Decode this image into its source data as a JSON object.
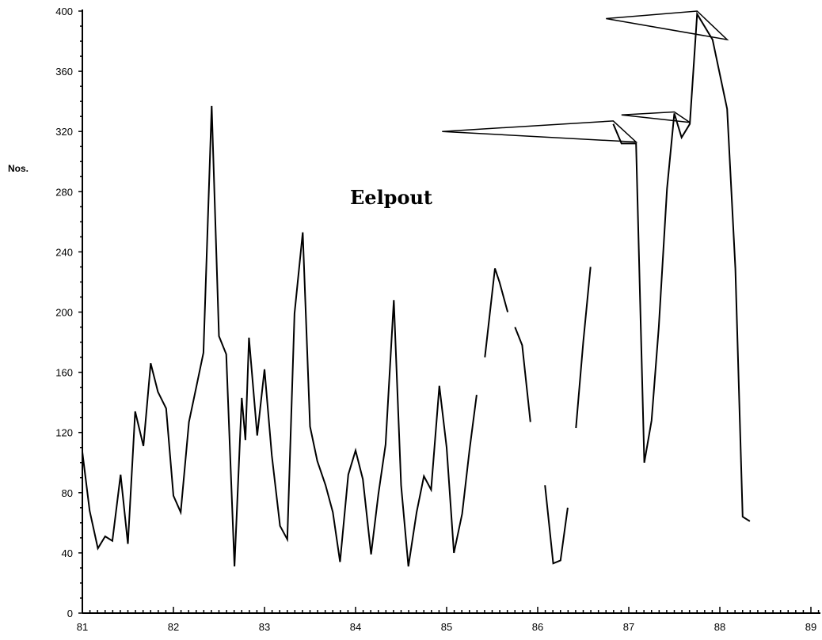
{
  "chart_data": {
    "type": "line",
    "title": "Eelpout",
    "ylabel": "Nos.",
    "xlabel": "",
    "ylim": [
      0,
      400
    ],
    "xlim": [
      81,
      89.9
    ],
    "y_ticks": [
      0,
      40,
      80,
      120,
      160,
      200,
      240,
      280,
      320,
      360,
      400
    ],
    "x_ticks": [
      81,
      82,
      83,
      84,
      85,
      86,
      87,
      88,
      89
    ],
    "grid": false,
    "series": [
      {
        "segments": [
          [
            [
              81.0,
              107
            ],
            [
              81.08,
              68
            ],
            [
              81.17,
              43
            ],
            [
              81.25,
              51
            ],
            [
              81.33,
              48
            ],
            [
              81.42,
              92
            ],
            [
              81.5,
              46
            ],
            [
              81.58,
              134
            ],
            [
              81.67,
              111
            ],
            [
              81.75,
              166
            ],
            [
              81.83,
              147
            ],
            [
              81.92,
              136
            ],
            [
              82.0,
              78
            ],
            [
              82.08,
              67
            ],
            [
              82.17,
              127
            ],
            [
              82.25,
              150
            ],
            [
              82.33,
              173
            ],
            [
              82.42,
              337
            ],
            [
              82.5,
              184
            ],
            [
              82.58,
              172
            ],
            [
              82.67,
              31
            ],
            [
              82.75,
              143
            ],
            [
              82.79,
              115
            ],
            [
              82.83,
              183
            ],
            [
              82.92,
              118
            ],
            [
              83.0,
              162
            ],
            [
              83.08,
              105
            ],
            [
              83.17,
              58
            ],
            [
              83.25,
              49
            ],
            [
              83.33,
              199
            ],
            [
              83.42,
              253
            ],
            [
              83.5,
              124
            ],
            [
              83.58,
              101
            ],
            [
              83.67,
              85
            ],
            [
              83.75,
              67
            ],
            [
              83.83,
              34
            ],
            [
              83.92,
              92
            ],
            [
              84.0,
              108
            ],
            [
              84.08,
              89
            ],
            [
              84.17,
              39
            ],
            [
              84.25,
              79
            ],
            [
              84.33,
              112
            ],
            [
              84.42,
              208
            ],
            [
              84.5,
              85
            ],
            [
              84.58,
              31
            ],
            [
              84.67,
              67
            ],
            [
              84.75,
              91
            ],
            [
              84.83,
              82
            ],
            [
              84.92,
              151
            ],
            [
              85.0,
              110
            ],
            [
              85.08,
              40
            ],
            [
              85.17,
              66
            ],
            [
              85.25,
              108
            ],
            [
              85.33,
              145
            ]
          ],
          [
            [
              85.42,
              170
            ],
            [
              85.53,
              229
            ],
            [
              85.58,
              220
            ],
            [
              85.67,
              200
            ]
          ],
          [
            [
              85.75,
              190
            ],
            [
              85.83,
              178
            ],
            [
              85.92,
              127
            ]
          ],
          [
            [
              86.08,
              85
            ],
            [
              86.17,
              33
            ],
            [
              86.25,
              35
            ],
            [
              86.33,
              70
            ]
          ],
          [
            [
              86.42,
              123
            ],
            [
              86.5,
              180
            ],
            [
              86.58,
              230
            ]
          ],
          [
            [
              86.83,
              325
            ],
            [
              86.92,
              312
            ],
            [
              87.08,
              312
            ],
            [
              87.17,
              100
            ],
            [
              87.25,
              128
            ],
            [
              87.33,
              190
            ],
            [
              87.42,
              282
            ],
            [
              87.5,
              332
            ],
            [
              87.58,
              316
            ],
            [
              87.67,
              325
            ],
            [
              87.75,
              398
            ],
            [
              87.92,
              381
            ],
            [
              88.08,
              335
            ],
            [
              88.17,
              229
            ],
            [
              88.25,
              64
            ],
            [
              88.33,
              61
            ]
          ]
        ]
      }
    ],
    "annotation_flags": [
      [
        [
          84.95,
          320
        ],
        [
          86.83,
          327
        ],
        [
          87.08,
          313
        ]
      ],
      [
        [
          86.92,
          331
        ],
        [
          87.5,
          333
        ],
        [
          87.67,
          326
        ]
      ],
      [
        [
          86.75,
          395
        ],
        [
          87.75,
          400
        ],
        [
          88.08,
          381
        ]
      ]
    ]
  }
}
